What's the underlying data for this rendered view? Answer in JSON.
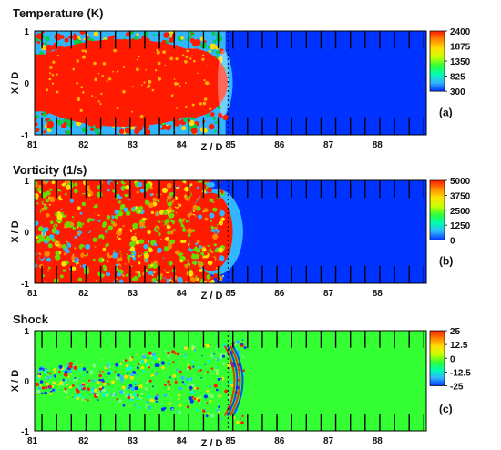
{
  "figure": {
    "panels_count_note": "",
    "x_axis_label": "Z / D",
    "y_axis_label": "X / D"
  },
  "chart_data": [
    {
      "type": "heatmap",
      "title": "Temperature (K)",
      "panel_tag": "(a)",
      "xlabel": "Z / D",
      "ylabel": "X / D",
      "xlim": [
        81,
        89
      ],
      "ylim": [
        -1,
        1
      ],
      "x_ticks": [
        82,
        83,
        84,
        85,
        86,
        87,
        88
      ],
      "x_tick_labels": [
        "82",
        "83",
        "84",
        "85",
        "86",
        "87",
        "88"
      ],
      "x_start_label": "81",
      "y_ticks": [
        1,
        0,
        -1
      ],
      "y_tick_labels": [
        "1",
        "0",
        "-1"
      ],
      "colorbar": {
        "min": 300,
        "max": 2400,
        "ticks": [
          2400,
          1875,
          1350,
          825,
          300
        ],
        "tick_labels": [
          "2400",
          "1875",
          "1350",
          "825",
          "300"
        ]
      },
      "field_regions": [
        {
          "name": "hot-core",
          "z_start": 81,
          "z_end": 84.6,
          "value": 2400
        },
        {
          "name": "front-edge",
          "z_start": 84.6,
          "z_end": 85.0,
          "value": 900
        },
        {
          "name": "ambient",
          "z_start": 85.0,
          "z_end": 89,
          "value": 300
        }
      ],
      "colors": {
        "hot": "#ff1a00",
        "warm": "#00cc44",
        "cool": "#31b6ff",
        "ambient": "#0033ff"
      }
    },
    {
      "type": "heatmap",
      "title": "Vorticity (1/s)",
      "panel_tag": "(b)",
      "xlabel": "Z / D",
      "ylabel": "X / D",
      "xlim": [
        81,
        89
      ],
      "ylim": [
        -1,
        1
      ],
      "x_ticks": [
        82,
        83,
        84,
        85,
        86,
        87,
        88
      ],
      "x_tick_labels": [
        "82",
        "83",
        "84",
        "85",
        "86",
        "87",
        "88"
      ],
      "x_start_label": "81",
      "y_ticks": [
        1,
        0,
        -1
      ],
      "y_tick_labels": [
        "1",
        "0",
        "-1"
      ],
      "colorbar": {
        "min": 0,
        "max": 5000,
        "ticks": [
          5000,
          3750,
          2500,
          1250,
          0
        ],
        "tick_labels": [
          "5000",
          "3750",
          "2500",
          "1250",
          "0"
        ]
      },
      "field_regions": [
        {
          "name": "turbulent-wake",
          "z_start": 81,
          "z_end": 84.6,
          "value": 4000
        },
        {
          "name": "front-edge",
          "z_start": 84.6,
          "z_end": 85.2,
          "value": 2500
        },
        {
          "name": "ambient",
          "z_start": 85.2,
          "z_end": 89,
          "value": 0
        }
      ],
      "colors": {
        "hot": "#ff1a00",
        "mid": "#66dd00",
        "warm": "#ffe000",
        "cool": "#31b6ff",
        "ambient": "#0033ff"
      }
    },
    {
      "type": "heatmap",
      "title": "Shock",
      "panel_tag": "(c)",
      "xlabel": "Z / D",
      "ylabel": "X / D",
      "xlim": [
        81,
        89
      ],
      "ylim": [
        -1,
        1
      ],
      "x_ticks": [
        82,
        83,
        84,
        85,
        86,
        87,
        88
      ],
      "x_tick_labels": [
        "82",
        "83",
        "84",
        "85",
        "86",
        "87",
        "88"
      ],
      "x_start_label": "81",
      "y_ticks": [
        1,
        0,
        -1
      ],
      "y_tick_labels": [
        "1",
        "0",
        "-1"
      ],
      "colorbar": {
        "min": -25,
        "max": 25,
        "ticks": [
          25,
          12.5,
          0,
          -12.5,
          -25
        ],
        "tick_labels": [
          "25",
          "12.5",
          "0",
          "-12.5",
          "-25"
        ]
      },
      "field_regions": [
        {
          "name": "fluctuation-zone",
          "z_start": 81,
          "z_end": 85.3,
          "value": 0
        },
        {
          "name": "ambient",
          "z_start": 85.3,
          "z_end": 89,
          "value": 0
        }
      ],
      "colors": {
        "background": "#33ff33",
        "positive": "#ff1a00",
        "negative": "#0033ff",
        "mid": "#ffe000",
        "low": "#31b6ff"
      }
    }
  ],
  "shared_colorbar_gradient": [
    "#0033ff",
    "#31b6ff",
    "#00ffb0",
    "#33ff33",
    "#ccff00",
    "#ffe000",
    "#ff8800",
    "#ff1a00"
  ]
}
